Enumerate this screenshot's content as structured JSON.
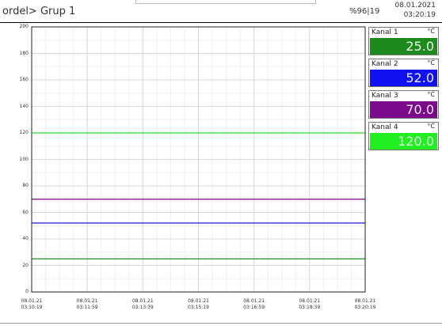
{
  "header": {
    "breadcrumb": "ordel> Grup 1",
    "status": "%96|19",
    "date": "08.01.2021",
    "time": "03:20:19"
  },
  "chart_data": {
    "type": "line",
    "ylim": [
      0,
      200
    ],
    "y_ticks": [
      0,
      20,
      40,
      60,
      80,
      100,
      120,
      140,
      160,
      180,
      200
    ],
    "x_ticks": [
      {
        "date": "08.01.21",
        "time": "03:10:19"
      },
      {
        "date": "08.01.21",
        "time": "03:11:59"
      },
      {
        "date": "08.01.21",
        "time": "03:13:39"
      },
      {
        "date": "08.01.21",
        "time": "03:15:19"
      },
      {
        "date": "08.01.21",
        "time": "03:16:59"
      },
      {
        "date": "08.01.21",
        "time": "03:18:39"
      },
      {
        "date": "08.01.21",
        "time": "03:20:19"
      }
    ],
    "series": [
      {
        "name": "Kanal 1",
        "value": 25.0,
        "color": "#1e8a1e"
      },
      {
        "name": "Kanal 2",
        "value": 52.0,
        "color": "#1a1ad6"
      },
      {
        "name": "Kanal 3",
        "value": 70.0,
        "color": "#800080"
      },
      {
        "name": "Kanal 4",
        "value": 120.0,
        "color": "#22e022"
      }
    ]
  },
  "channels": [
    {
      "name": "Kanal 1",
      "unit": "°C",
      "value": "25.0",
      "bg": "#1e8a1e",
      "fg": "#e8ffe8"
    },
    {
      "name": "Kanal 2",
      "unit": "°C",
      "value": "52.0",
      "bg": "#1010f0",
      "fg": "#e8e8ff"
    },
    {
      "name": "Kanal 3",
      "unit": "°C",
      "value": "70.0",
      "bg": "#7a0a8a",
      "fg": "#f4e8ff"
    },
    {
      "name": "Kanal 4",
      "unit": "°C",
      "value": "120.0",
      "bg": "#22ee22",
      "fg": "#d8ffd8"
    }
  ]
}
